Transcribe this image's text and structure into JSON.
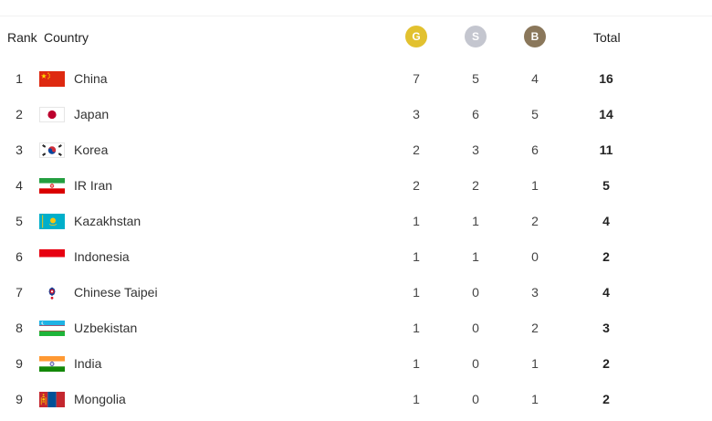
{
  "header": {
    "rank_label": "Rank",
    "country_label": "Country",
    "gold_label": "G",
    "silver_label": "S",
    "bronze_label": "B",
    "total_label": "Total"
  },
  "colors": {
    "gold": "#e2c12f",
    "silver": "#c4c6cf",
    "bronze": "#8a775b"
  },
  "rows": [
    {
      "rank": "1",
      "country": "China",
      "flag": "china-flag-icon",
      "gold": "7",
      "silver": "5",
      "bronze": "4",
      "total": "16"
    },
    {
      "rank": "2",
      "country": "Japan",
      "flag": "japan-flag-icon",
      "gold": "3",
      "silver": "6",
      "bronze": "5",
      "total": "14"
    },
    {
      "rank": "3",
      "country": "Korea",
      "flag": "korea-flag-icon",
      "gold": "2",
      "silver": "3",
      "bronze": "6",
      "total": "11"
    },
    {
      "rank": "4",
      "country": "IR Iran",
      "flag": "iran-flag-icon",
      "gold": "2",
      "silver": "2",
      "bronze": "1",
      "total": "5"
    },
    {
      "rank": "5",
      "country": "Kazakhstan",
      "flag": "kazakhstan-flag-icon",
      "gold": "1",
      "silver": "1",
      "bronze": "2",
      "total": "4"
    },
    {
      "rank": "6",
      "country": "Indonesia",
      "flag": "indonesia-flag-icon",
      "gold": "1",
      "silver": "1",
      "bronze": "0",
      "total": "2"
    },
    {
      "rank": "7",
      "country": "Chinese Taipei",
      "flag": "chinese-taipei-flag-icon",
      "gold": "1",
      "silver": "0",
      "bronze": "3",
      "total": "4"
    },
    {
      "rank": "8",
      "country": "Uzbekistan",
      "flag": "uzbekistan-flag-icon",
      "gold": "1",
      "silver": "0",
      "bronze": "2",
      "total": "3"
    },
    {
      "rank": "9",
      "country": "India",
      "flag": "india-flag-icon",
      "gold": "1",
      "silver": "0",
      "bronze": "1",
      "total": "2"
    },
    {
      "rank": "9",
      "country": "Mongolia",
      "flag": "mongolia-flag-icon",
      "gold": "1",
      "silver": "0",
      "bronze": "1",
      "total": "2"
    }
  ]
}
